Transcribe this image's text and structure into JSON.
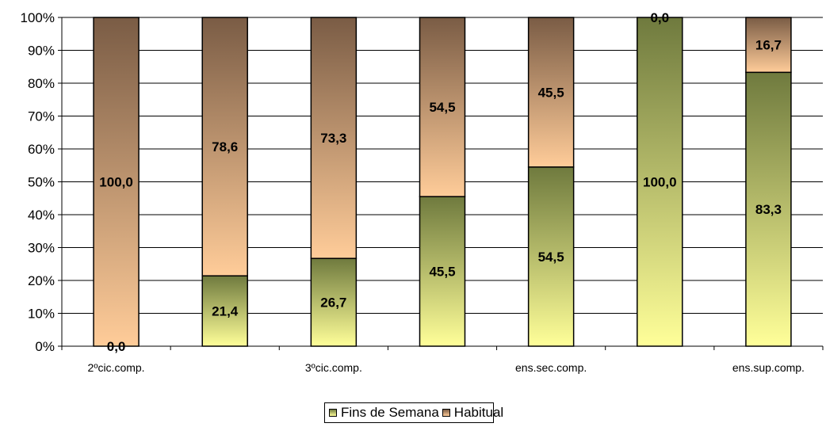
{
  "chart_data": {
    "type": "bar",
    "stacked": true,
    "percent_scale": true,
    "title": "",
    "xlabel": "",
    "ylabel": "",
    "ylim": [
      0,
      100
    ],
    "yticks": [
      "0%",
      "10%",
      "20%",
      "30%",
      "40%",
      "50%",
      "60%",
      "70%",
      "80%",
      "90%",
      "100%"
    ],
    "categories": [
      "2ºcic.comp.",
      "",
      "3ºcic.comp.",
      "",
      "ens.sec.comp.",
      "",
      "ens.sup.comp."
    ],
    "series": [
      {
        "name": "Fins de Semana",
        "values": [
          0.0,
          21.4,
          26.7,
          45.5,
          54.5,
          100.0,
          83.3
        ],
        "labels": [
          "0,0",
          "21,4",
          "26,7",
          "45,5",
          "54,5",
          "100,0",
          "83,3"
        ],
        "color_top": "#6f7a3e",
        "color_bottom": "#ffff99"
      },
      {
        "name": "Habitual",
        "values": [
          100.0,
          78.6,
          73.3,
          54.5,
          45.5,
          0.0,
          16.7
        ],
        "labels": [
          "100,0",
          "78,6",
          "73,3",
          "54,5",
          "45,5",
          "0,0",
          "16,7"
        ],
        "color_top": "#7a5c45",
        "color_bottom": "#ffcc99"
      }
    ],
    "grid": true,
    "legend_position": "bottom"
  }
}
